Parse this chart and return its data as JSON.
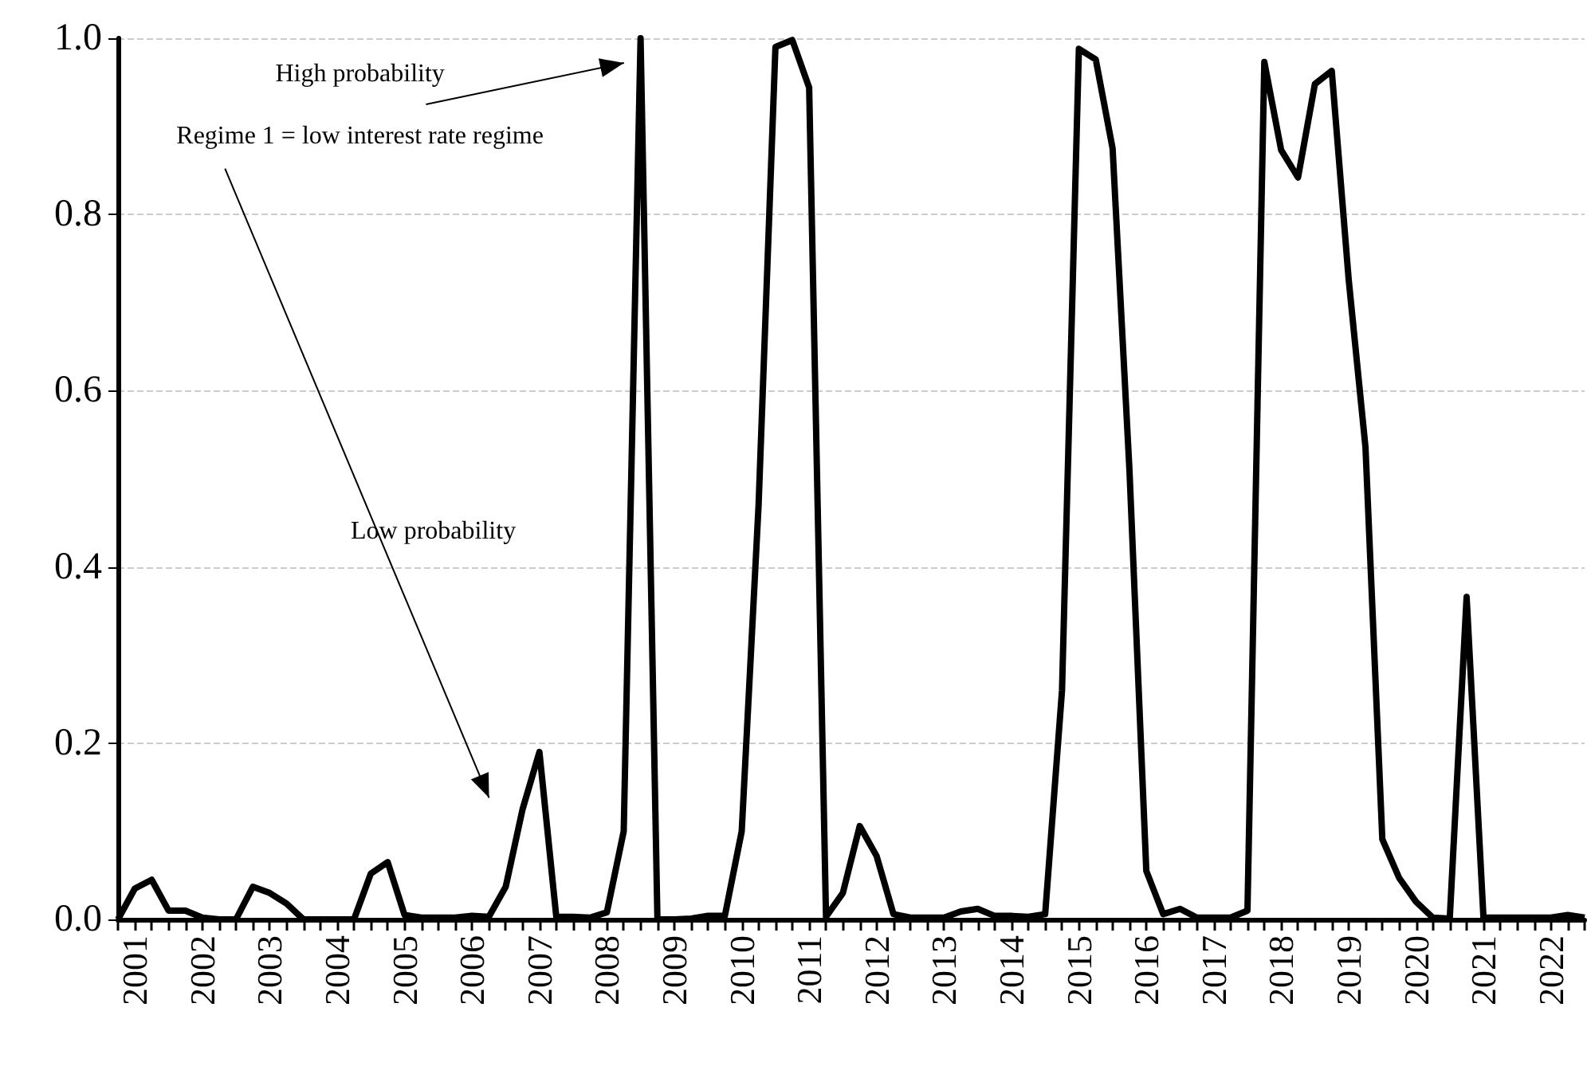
{
  "chart_data": {
    "type": "line",
    "categories": [
      null,
      "2001",
      null,
      null,
      null,
      "2002",
      null,
      null,
      null,
      "2003",
      null,
      null,
      null,
      "2004",
      null,
      null,
      null,
      "2005",
      null,
      null,
      null,
      "2006",
      null,
      null,
      null,
      "2007",
      null,
      null,
      null,
      "2008",
      null,
      null,
      null,
      "2009",
      null,
      null,
      null,
      "2010",
      null,
      null,
      null,
      "2011",
      null,
      null,
      null,
      "2012",
      null,
      null,
      null,
      "2013",
      null,
      null,
      null,
      "2014",
      null,
      null,
      null,
      "2015",
      null,
      null,
      null,
      "2016",
      null,
      null,
      null,
      "2017",
      null,
      null,
      null,
      "2018",
      null,
      null,
      null,
      "2019",
      null,
      null,
      null,
      "2020",
      null,
      null,
      null,
      "2021",
      null,
      null,
      null,
      "2022",
      null,
      null
    ],
    "series": [
      {
        "color": "#000000",
        "values": [
          0,
          0.035,
          0.045,
          0.01,
          0.01,
          0.002,
          0,
          0,
          0.037,
          0.03,
          0.018,
          0,
          0,
          0,
          0,
          0.052,
          0.065,
          0.005,
          0.002,
          0.002,
          0.002,
          0.004,
          0.003,
          0.037,
          0.125,
          0.19,
          0.003,
          0.003,
          0.002,
          0.008,
          0.1,
          1.0,
          0,
          0,
          0.001,
          0.004,
          0.004,
          0.1,
          0.47,
          0.99,
          0.998,
          0.944,
          0.003,
          0.03,
          0.106,
          0.072,
          0.006,
          0.002,
          0.002,
          0.002,
          0.009,
          0.012,
          0.004,
          0.004,
          0.003,
          0.006,
          0.26,
          0.988,
          0.976,
          0.875,
          0.51,
          0.055,
          0.006,
          0.012,
          0.002,
          0.002,
          0.002,
          0.01,
          0.973,
          0.873,
          0.842,
          0.948,
          0.963,
          0.727,
          0.536,
          0.091,
          0.047,
          0.02,
          0.002,
          0.001,
          0.366,
          0.002,
          0.002,
          0.002,
          0.002,
          0.002,
          0.005,
          0.002
        ]
      }
    ],
    "ylim": [
      0,
      1
    ],
    "yticks": [
      {
        "value": 0,
        "label": "0.0"
      },
      {
        "value": 0.2,
        "label": "0.2"
      },
      {
        "value": 0.4,
        "label": "0.4"
      },
      {
        "value": 0.6,
        "label": "0.6"
      },
      {
        "value": 0.8,
        "label": "0.8"
      },
      {
        "value": 1,
        "label": "1.0"
      }
    ],
    "grid": "y",
    "marker": "none",
    "line_style": "solid",
    "annotations": [
      "High probability",
      "Regime 1 = low interest rate regime",
      "Low probability"
    ]
  }
}
